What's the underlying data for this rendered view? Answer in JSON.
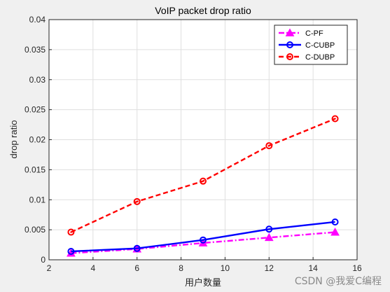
{
  "chart_data": {
    "type": "line",
    "title": "VoIP packet drop ratio",
    "xlabel": "用户数量",
    "ylabel": "drop ratio",
    "xlim": [
      2,
      16
    ],
    "ylim": [
      0,
      0.04
    ],
    "xticks": [
      2,
      4,
      6,
      8,
      10,
      12,
      14,
      16
    ],
    "yticks": [
      0,
      0.005,
      0.01,
      0.015,
      0.02,
      0.025,
      0.03,
      0.035,
      0.04
    ],
    "xtick_labels": [
      "2",
      "4",
      "6",
      "8",
      "10",
      "12",
      "14",
      "16"
    ],
    "ytick_labels": [
      "0",
      "0.005",
      "0.01",
      "0.015",
      "0.02",
      "0.025",
      "0.03",
      "0.035",
      "0.04"
    ],
    "grid": true,
    "legend_position": "top-right",
    "x": [
      3,
      6,
      9,
      12,
      15
    ],
    "series": [
      {
        "name": "C-PF",
        "values": [
          0.0011,
          0.0018,
          0.0028,
          0.0037,
          0.0046
        ],
        "color": "#ff00ff",
        "dash": "dashdot",
        "marker": "triangle"
      },
      {
        "name": "C-CUBP",
        "values": [
          0.0014,
          0.0019,
          0.0033,
          0.0051,
          0.0063
        ],
        "color": "#0000ff",
        "dash": "solid",
        "marker": "circle"
      },
      {
        "name": "C-DUBP",
        "values": [
          0.0046,
          0.0097,
          0.0131,
          0.019,
          0.0235
        ],
        "color": "#ff0000",
        "dash": "dashed",
        "marker": "circle-dot"
      }
    ]
  },
  "watermark": "CSDN @我爱C编程"
}
